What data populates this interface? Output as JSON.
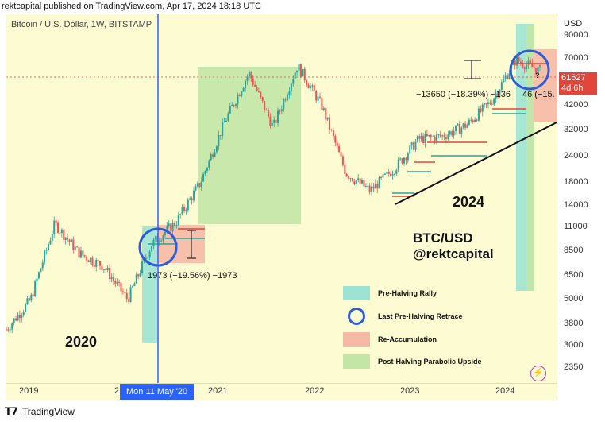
{
  "header": {
    "publisher_line": "rektcapital published on TradingView.com, Apr 17, 2024 18:18 UTC"
  },
  "symbol_line": "Bitcoin / U.S. Dollar, 1W, BITSTAMP",
  "price_axis": {
    "currency": "USD",
    "ticks": [
      {
        "label": "90000",
        "value": 90000
      },
      {
        "label": "70000",
        "value": 70000
      },
      {
        "label": "42000",
        "value": 42000
      },
      {
        "label": "32000",
        "value": 32000
      },
      {
        "label": "24000",
        "value": 24000
      },
      {
        "label": "18000",
        "value": 18000
      },
      {
        "label": "14000",
        "value": 14000
      },
      {
        "label": "11000",
        "value": 11000
      },
      {
        "label": "8500",
        "value": 8500
      },
      {
        "label": "6500",
        "value": 6500
      },
      {
        "label": "5000",
        "value": 5000
      },
      {
        "label": "3800",
        "value": 3800
      },
      {
        "label": "3000",
        "value": 3000
      },
      {
        "label": "2350",
        "value": 2350
      }
    ],
    "current_price": "61627",
    "countdown": "4d 6h"
  },
  "time_axis": {
    "ticks": [
      {
        "label": "2019"
      },
      {
        "label": "2"
      },
      {
        "label": "2021"
      },
      {
        "label": "2022"
      },
      {
        "label": "2023"
      },
      {
        "label": "2024"
      }
    ],
    "crosshair_date": "Mon 11 May '20"
  },
  "annotations": {
    "year_2020": "2020",
    "year_2024": "2024",
    "pair": "BTC/USD",
    "handle": "@rektcapital",
    "measure_2020": "1973 (−19.56%) −1973",
    "measure_2024_a": "−13650 (−18.39%) −136",
    "measure_2024_b": "46 (−15.",
    "question": "?"
  },
  "legend": [
    {
      "label": "Pre-Halving Rally",
      "color": "#9de3d3"
    },
    {
      "label": "Last Pre-Halving Retrace",
      "color": "#2e5bd8"
    },
    {
      "label": "Re-Accumulation",
      "color": "#f6b9a5"
    },
    {
      "label": "Post-Halving Parabolic Upside",
      "color": "#c3e6a7"
    }
  ],
  "footer": {
    "brand": "TradingView"
  },
  "colors": {
    "background": "#fdfbd2",
    "up": "#26a69a",
    "down": "#ef5350",
    "vertical_line": "#2962ff",
    "circle": "#2e5bd8",
    "trendline": "#111111"
  },
  "chart_data": {
    "type": "line",
    "title": "Bitcoin / U.S. Dollar, 1W, BITSTAMP",
    "y_scale": "log",
    "ylim": [
      2000,
      110000
    ],
    "x": [
      "2019-01",
      "2019-04",
      "2019-06",
      "2019-09",
      "2019-12",
      "2020-03",
      "2020-05",
      "2020-08",
      "2020-11",
      "2021-01",
      "2021-04",
      "2021-07",
      "2021-11",
      "2022-01",
      "2022-06",
      "2022-11",
      "2023-01",
      "2023-04",
      "2023-07",
      "2023-10",
      "2024-01",
      "2024-03",
      "2024-04"
    ],
    "series": [
      {
        "values": [
          3600,
          5000,
          11500,
          8300,
          7200,
          5000,
          9200,
          11700,
          18000,
          35000,
          60000,
          33000,
          65000,
          42000,
          20000,
          16500,
          21000,
          29000,
          30000,
          34000,
          44000,
          69000,
          61627
        ]
      }
    ]
  }
}
